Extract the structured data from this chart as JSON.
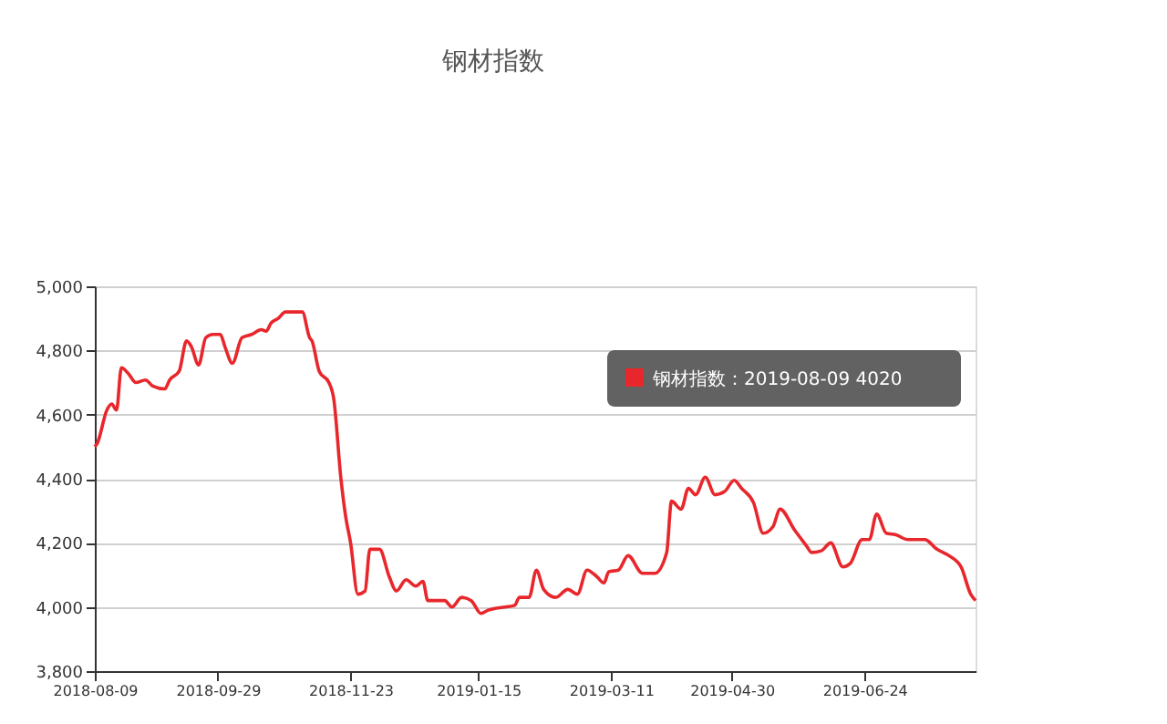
{
  "chart_data": {
    "type": "line",
    "title": "钢材指数",
    "x": [
      "2018-08-09",
      "2018-08-10",
      "2018-08-14",
      "2018-08-16",
      "2018-08-18",
      "2018-08-20",
      "2018-08-23",
      "2018-08-26",
      "2018-08-30",
      "2018-09-02",
      "2018-09-07",
      "2018-09-09",
      "2018-09-13",
      "2018-09-16",
      "2018-09-18",
      "2018-09-21",
      "2018-09-24",
      "2018-09-27",
      "2018-09-30",
      "2018-10-02",
      "2018-10-05",
      "2018-10-09",
      "2018-10-13",
      "2018-10-17",
      "2018-10-19",
      "2018-10-21",
      "2018-10-24",
      "2018-10-27",
      "2018-11-03",
      "2018-11-06",
      "2018-11-07",
      "2018-11-10",
      "2018-11-14",
      "2018-11-16",
      "2018-11-19",
      "2018-11-21",
      "2018-11-23",
      "2018-11-26",
      "2018-11-29",
      "2018-12-01",
      "2018-12-05",
      "2018-12-09",
      "2018-12-12",
      "2018-12-16",
      "2018-12-20",
      "2018-12-23",
      "2018-12-25",
      "2019-01-01",
      "2019-01-04",
      "2019-01-08",
      "2019-01-12",
      "2019-01-16",
      "2019-01-19",
      "2019-01-26",
      "2019-01-30",
      "2019-02-01",
      "2019-02-05",
      "2019-02-08",
      "2019-02-11",
      "2019-02-16",
      "2019-02-21",
      "2019-02-25",
      "2019-03-01",
      "2019-03-05",
      "2019-03-08",
      "2019-03-10",
      "2019-03-14",
      "2019-03-18",
      "2019-03-24",
      "2019-03-29",
      "2019-04-03",
      "2019-04-05",
      "2019-04-09",
      "2019-04-12",
      "2019-04-15",
      "2019-04-19",
      "2019-04-23",
      "2019-04-27",
      "2019-05-01",
      "2019-05-04",
      "2019-05-09",
      "2019-05-13",
      "2019-05-17",
      "2019-05-20",
      "2019-05-26",
      "2019-05-31",
      "2019-06-02",
      "2019-06-06",
      "2019-06-10",
      "2019-06-15",
      "2019-06-18",
      "2019-06-23",
      "2019-06-26",
      "2019-06-29",
      "2019-07-03",
      "2019-07-07",
      "2019-07-12",
      "2019-07-19",
      "2019-07-24",
      "2019-07-29",
      "2019-08-03",
      "2019-08-07",
      "2019-08-09"
    ],
    "series": [
      {
        "color": "#e8272c",
        "values": [
          4500,
          4510,
          4614,
          4633,
          4614,
          4746,
          4727,
          4700,
          4708,
          4689,
          4680,
          4708,
          4736,
          4830,
          4812,
          4755,
          4840,
          4850,
          4850,
          4810,
          4760,
          4840,
          4850,
          4865,
          4860,
          4885,
          4900,
          4920,
          4920,
          4840,
          4830,
          4735,
          4700,
          4650,
          4400,
          4280,
          4200,
          4040,
          4050,
          4180,
          4180,
          4095,
          4050,
          4085,
          4065,
          4080,
          4020,
          4020,
          4000,
          4030,
          4020,
          3980,
          3990,
          4000,
          4005,
          4030,
          4030,
          4115,
          4055,
          4030,
          4055,
          4040,
          4115,
          4095,
          4075,
          4110,
          4115,
          4160,
          4105,
          4105,
          4170,
          4330,
          4305,
          4370,
          4350,
          4405,
          4350,
          4360,
          4395,
          4370,
          4325,
          4230,
          4250,
          4305,
          4240,
          4190,
          4170,
          4175,
          4200,
          4125,
          4135,
          4210,
          4210,
          4290,
          4230,
          4225,
          4210,
          4210,
          4180,
          4160,
          4125,
          4040,
          4020
        ]
      }
    ],
    "xlim": [
      "2018-08-09",
      "2019-08-09"
    ],
    "xticks": [
      "2018-08-09",
      "2018-09-29",
      "2018-11-23",
      "2019-01-15",
      "2019-03-11",
      "2019-04-30",
      "2019-06-24"
    ],
    "ylim": [
      3800,
      5000
    ],
    "yticks": [
      {
        "value": 3800,
        "label": "3,800"
      },
      {
        "value": 4000,
        "label": "4,000"
      },
      {
        "value": 4200,
        "label": "4,200"
      },
      {
        "value": 4400,
        "label": "4,400"
      },
      {
        "value": 4600,
        "label": "4,600"
      },
      {
        "value": 4800,
        "label": "4,800"
      },
      {
        "value": 5000,
        "label": "5,000"
      }
    ],
    "grid": "y",
    "marker": "none",
    "line_style": "solid",
    "annotations": [
      "钢材指数：2019-08-09 4020"
    ]
  }
}
